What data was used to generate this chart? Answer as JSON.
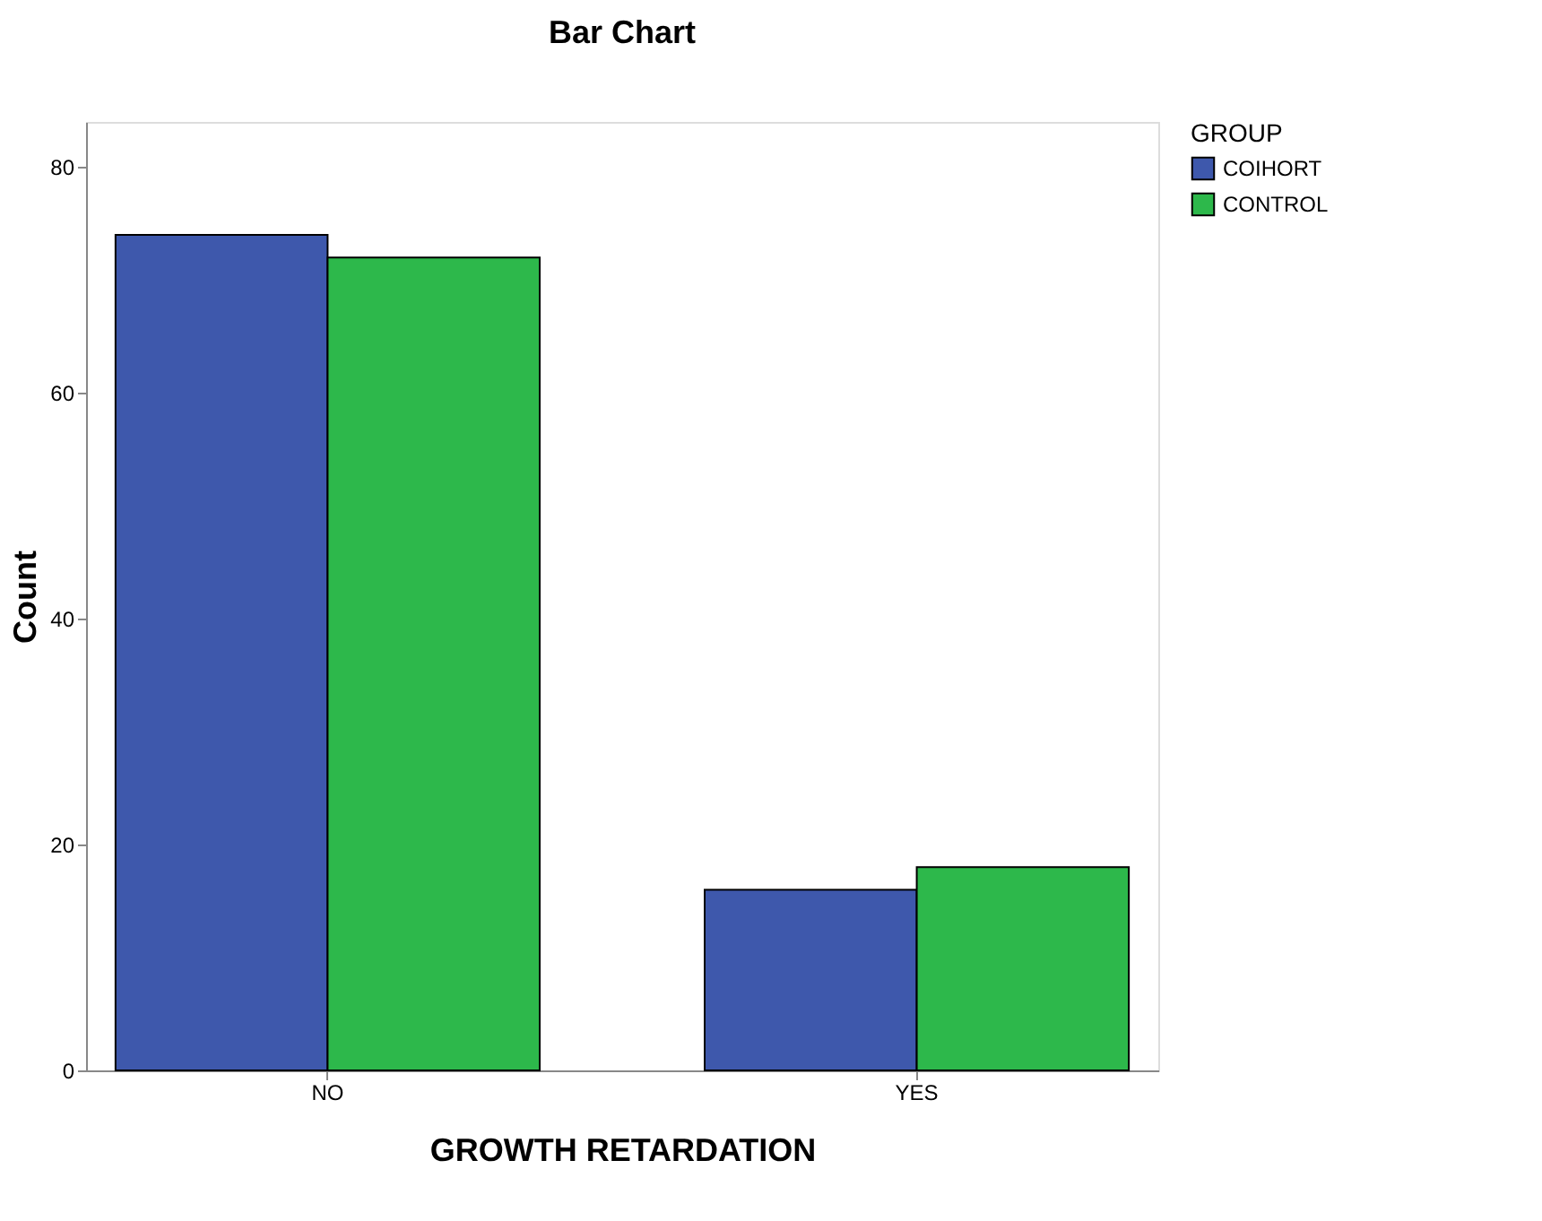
{
  "chart_data": {
    "type": "bar",
    "title": "Bar Chart",
    "xlabel": "GROWTH RETARDATION",
    "ylabel": "Count",
    "legend_title": "GROUP",
    "categories": [
      "NO",
      "YES"
    ],
    "series": [
      {
        "name": "COIHORT",
        "color": "#3e58ac",
        "values": [
          74,
          16
        ]
      },
      {
        "name": "CONTROL",
        "color": "#2db84b",
        "values": [
          72,
          18
        ]
      }
    ],
    "ylim": [
      0,
      84
    ],
    "yticks": [
      0,
      20,
      40,
      60,
      80
    ],
    "grid": false,
    "legend": "top right"
  }
}
